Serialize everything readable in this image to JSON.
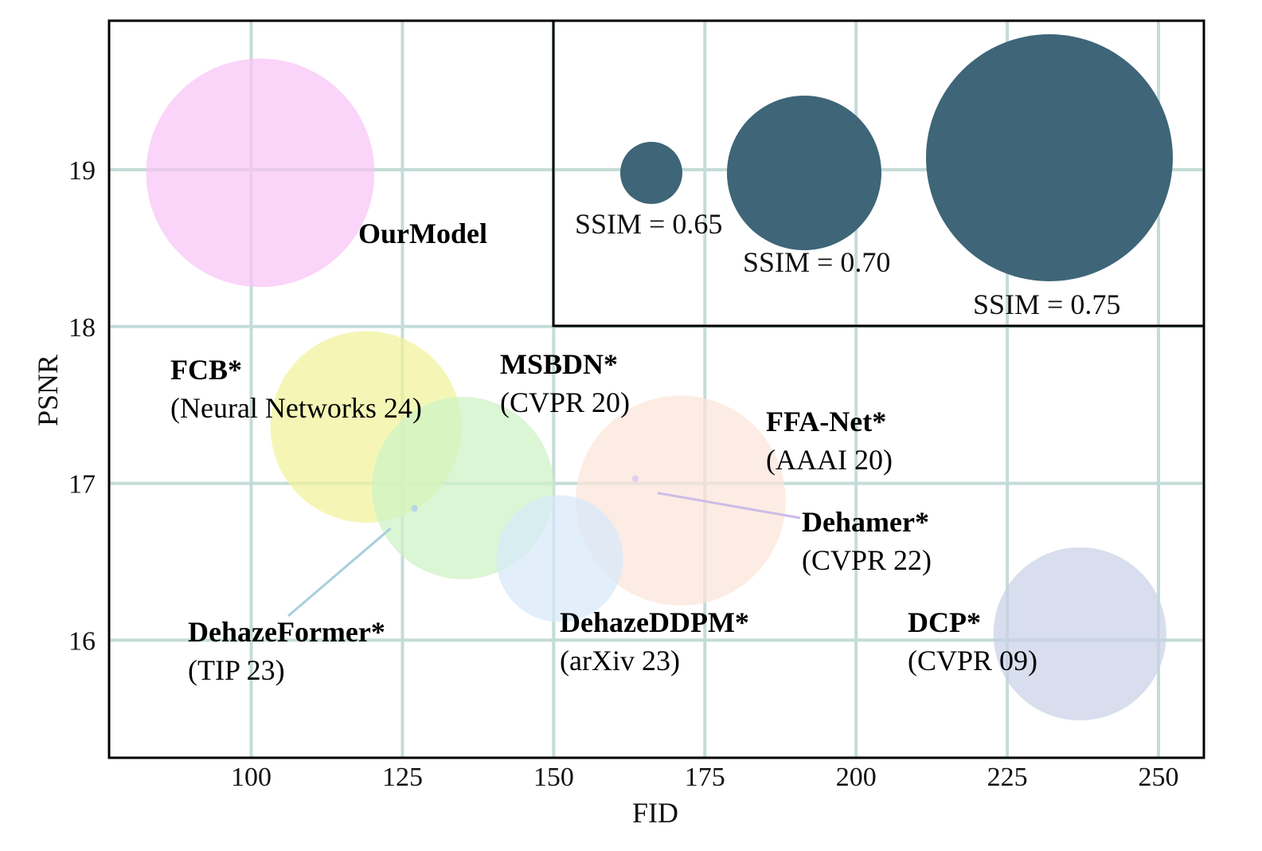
{
  "chart_data": {
    "type": "scatter",
    "variant": "bubble",
    "xlabel": "FID",
    "ylabel": "PSNR",
    "xlim": [
      76.5,
      257.5
    ],
    "ylim": [
      15.25,
      19.95
    ],
    "xticks": [
      100,
      125,
      150,
      175,
      200,
      225,
      250
    ],
    "yticks": [
      16,
      17,
      18,
      19
    ],
    "grid": true,
    "grid_color": "#c4dcd8",
    "series": [
      {
        "name": "OurModel",
        "venue": "",
        "x": 101.5,
        "y": 18.98,
        "ssim": 0.74,
        "color": "#f9c4f7"
      },
      {
        "name": "FCB*",
        "venue": "(Neural Networks 24)",
        "x": 119,
        "y": 17.36,
        "ssim": 0.72,
        "color": "#f1f29a"
      },
      {
        "name": "MSBDN*",
        "venue": "(CVPR 20)",
        "x": 135,
        "y": 16.97,
        "ssim": 0.715,
        "color": "#cdf3c5"
      },
      {
        "name": "DehazeFormer*",
        "venue": "(TIP 23)",
        "x": 127,
        "y": 16.84,
        "ssim": 0.62,
        "color": "#a3cdf0"
      },
      {
        "name": "DehazeDDPM*",
        "venue": "(arXiv 23)",
        "x": 151,
        "y": 16.52,
        "ssim": 0.685,
        "color": "#d7e9f9"
      },
      {
        "name": "FFA-Net*",
        "venue": "(AAAI 20)",
        "x": 171,
        "y": 16.89,
        "ssim": 0.73,
        "color": "#fbe4d9"
      },
      {
        "name": "Dehamer*",
        "venue": "(CVPR 22)",
        "x": 163.5,
        "y": 17.03,
        "ssim": 0.62,
        "color": "#d7c5f1"
      },
      {
        "name": "DCP*",
        "venue": "(CVPR 09)",
        "x": 237,
        "y": 16.04,
        "ssim": 0.71,
        "color": "#c9d1e6"
      }
    ],
    "size_legend": {
      "color": "#3e6578",
      "items": [
        {
          "label": "SSIM = 0.65",
          "ssim": 0.65
        },
        {
          "label": "SSIM = 0.70",
          "ssim": 0.7
        },
        {
          "label": "SSIM = 0.75",
          "ssim": 0.75
        }
      ]
    }
  }
}
